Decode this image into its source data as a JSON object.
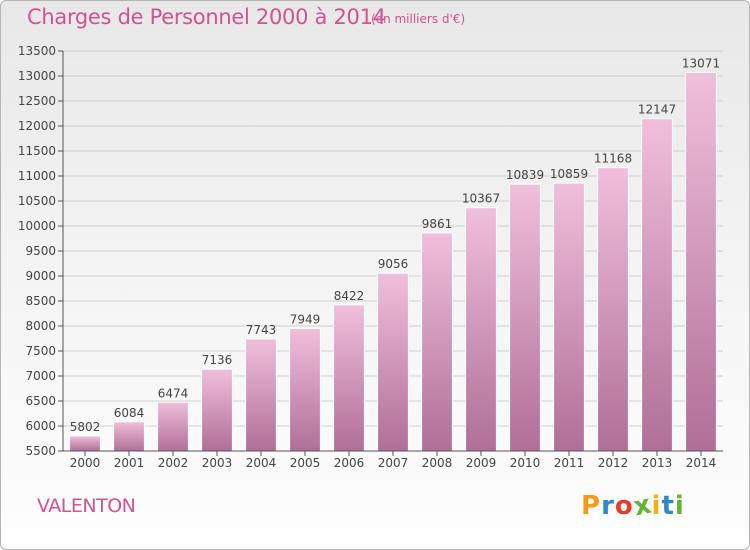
{
  "title": "Charges de Personnel 2000 à 2014",
  "subtitle": "(en milliers d'€)",
  "commune": "VALENTON",
  "logo": {
    "letters": [
      "P",
      "r",
      "o",
      "x",
      "i",
      "t",
      "i"
    ],
    "colors": [
      "#f39a16",
      "#2f86c8",
      "#e63a2d",
      "#63b337",
      "#f2b211",
      "#2f86c8",
      "#63b337"
    ]
  },
  "colors": {
    "bar_light": "#f0bfda",
    "bar_dark": "#b06f97",
    "text_pink": "#d0538f",
    "axis_text": "#444444",
    "grid": "#cfcfcf"
  },
  "chart_data": {
    "type": "bar",
    "title": "Charges de Personnel 2000 à 2014",
    "subtitle": "(en milliers d'€)",
    "categories": [
      "2000",
      "2001",
      "2002",
      "2003",
      "2004",
      "2005",
      "2006",
      "2007",
      "2008",
      "2009",
      "2010",
      "2011",
      "2012",
      "2013",
      "2014"
    ],
    "values": [
      5802,
      6084,
      6474,
      7136,
      7743,
      7949,
      8422,
      9056,
      9861,
      10367,
      10839,
      10859,
      11168,
      12147,
      13071
    ],
    "ylim": [
      5500,
      13500
    ],
    "yticks": [
      5500,
      6000,
      6500,
      7000,
      7500,
      8000,
      8500,
      9000,
      9500,
      10000,
      10500,
      11000,
      11500,
      12000,
      12500,
      13000,
      13500
    ],
    "grid": true,
    "data_labels": true
  }
}
